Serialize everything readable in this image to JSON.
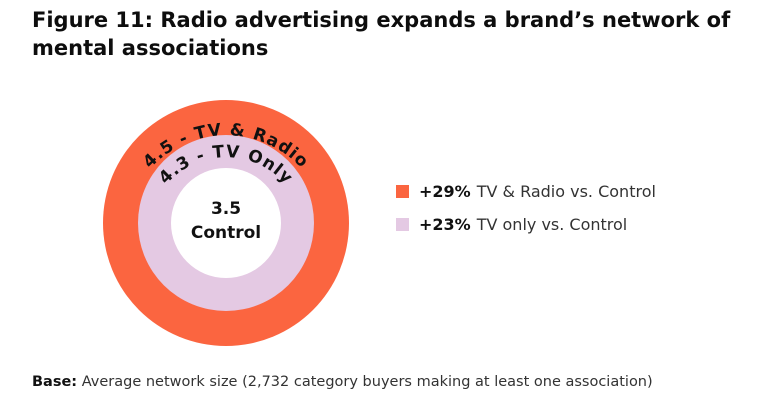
{
  "title": "Figure 11: Radio advertising expands a brand’s network of mental associations",
  "title_line1": "Figure 11: Radio advertising expands a brand’s network of",
  "title_line2": "mental associations",
  "colors": {
    "outer": "#fb6540",
    "middle": "#e4c9e3",
    "inner": "#ffffff",
    "text": "#111111"
  },
  "chart_data": {
    "type": "pie",
    "rings": [
      {
        "label": "4.5 - TV & Radio",
        "value": 4.5,
        "color": "#fb6540"
      },
      {
        "label": "4.3 - TV Only",
        "value": 4.3,
        "color": "#e4c9e3"
      },
      {
        "label": "Control",
        "value": 3.5,
        "color": "#ffffff"
      }
    ],
    "center_value": "3.5",
    "center_label": "Control",
    "legend": [
      {
        "pct": "+29%",
        "text": "TV & Radio vs. Control",
        "color": "#fb6540"
      },
      {
        "pct": "+23%",
        "text": "TV only vs. Control",
        "color": "#e4c9e3"
      }
    ]
  },
  "footer": {
    "label": "Base:",
    "text": "Average network size (2,732 category buyers making at least one association)"
  }
}
